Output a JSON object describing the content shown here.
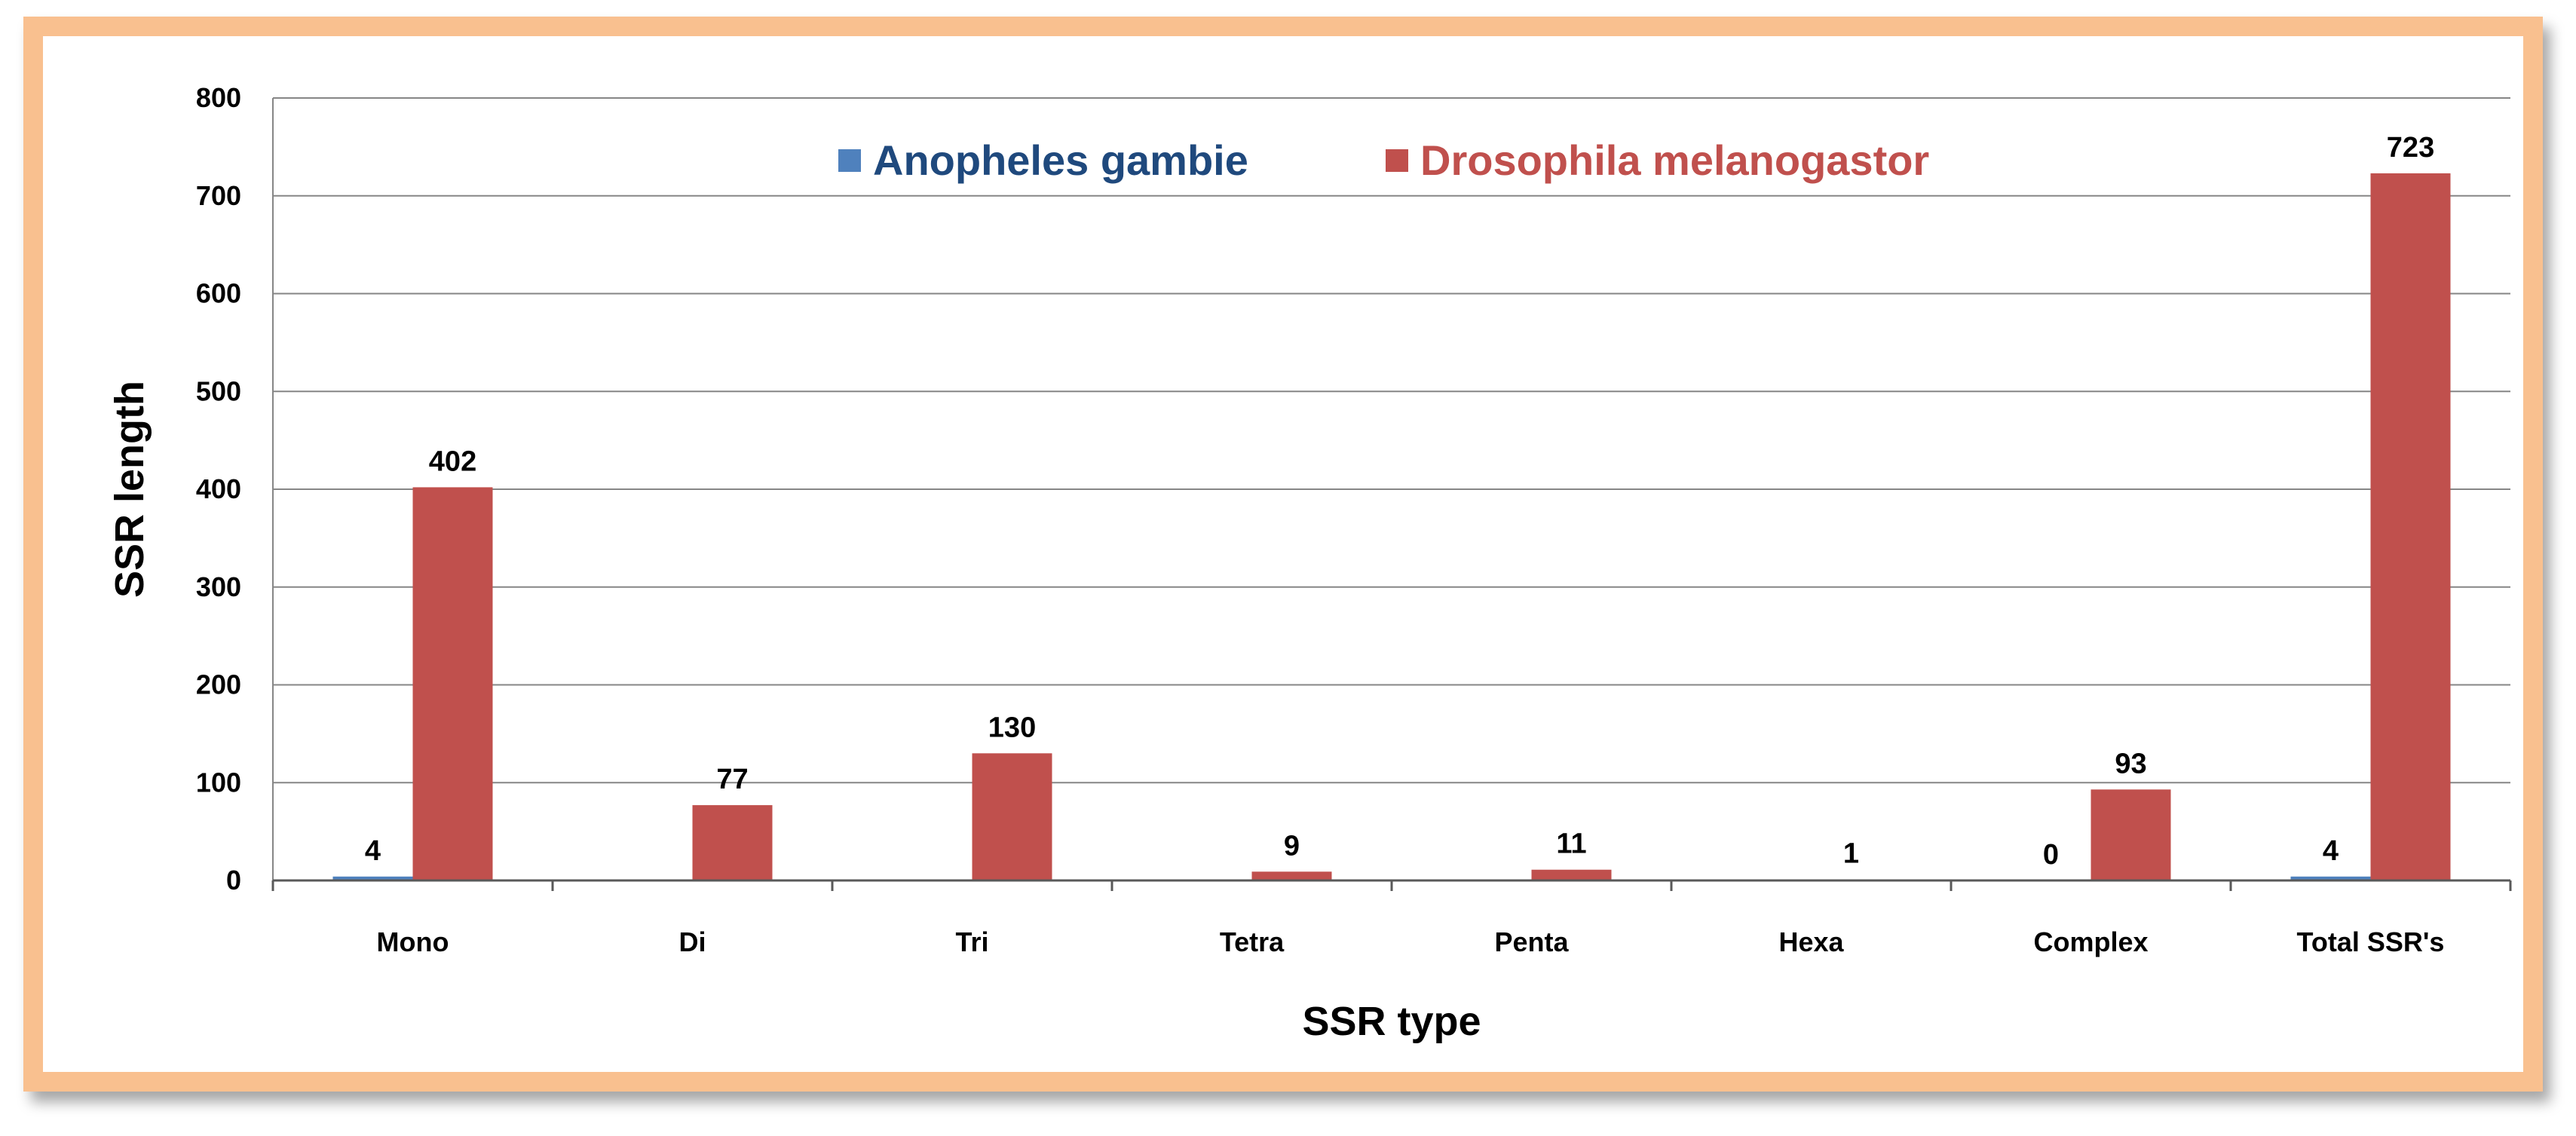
{
  "colors": {
    "frame_border": "#F9C08F",
    "grid": "#868686",
    "series_1": "#4F81BD",
    "series_2": "#C0504D",
    "legend_text_1": "#1F497D",
    "legend_text_2": "#C0504D"
  },
  "chart_data": {
    "type": "bar",
    "title": "",
    "xlabel": "SSR type",
    "ylabel": "SSR length",
    "ylim": [
      0,
      800
    ],
    "yticks": [
      0,
      100,
      200,
      300,
      400,
      500,
      600,
      700,
      800
    ],
    "categories": [
      "Mono",
      "Di",
      "Tri",
      "Tetra",
      "Penta",
      "Hexa",
      "Complex",
      "Total SSR's"
    ],
    "grid": true,
    "legend_position": "top-center",
    "series": [
      {
        "name": "Anopheles gambie",
        "color": "#4F81BD",
        "values": [
          4,
          0,
          0,
          0,
          0,
          0,
          0,
          4
        ],
        "labels": [
          "4",
          "",
          "",
          "",
          "",
          "",
          "0",
          "4"
        ]
      },
      {
        "name": "Drosophila melanogastor",
        "color": "#C0504D",
        "values": [
          402,
          77,
          130,
          9,
          11,
          1,
          93,
          723
        ],
        "labels": [
          "402",
          "77",
          "130",
          "9",
          "11",
          "1",
          "93",
          "723"
        ]
      }
    ]
  }
}
